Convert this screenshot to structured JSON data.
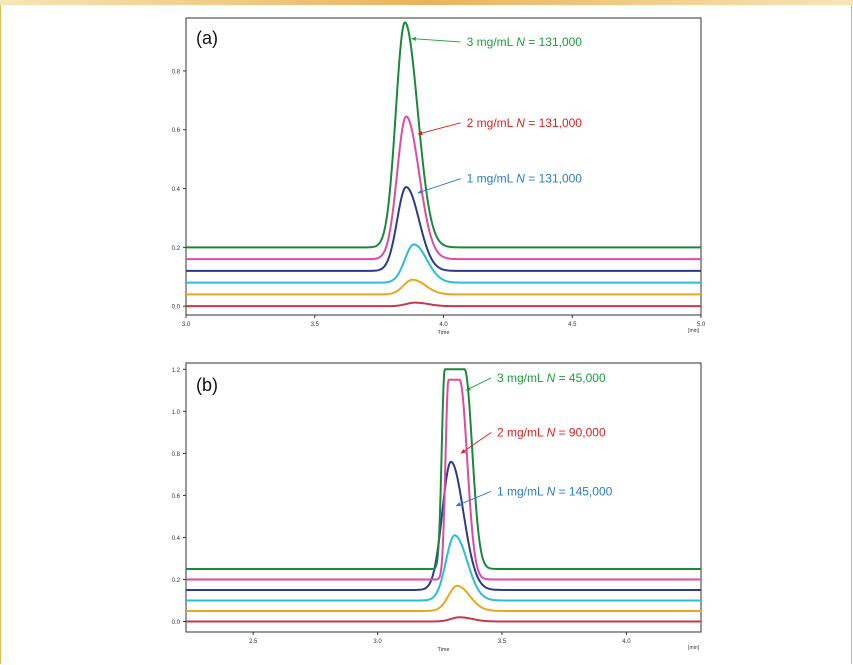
{
  "chart_data": [
    {
      "type": "line",
      "panel_label": "(a)",
      "xlabel": "Time",
      "x_unit": "[min]",
      "xlim": [
        3.0,
        5.0
      ],
      "ylim": [
        -0.03,
        0.98
      ],
      "x_ticks": [
        "3.0",
        "3.5",
        "4.0",
        "4.5",
        "5.0"
      ],
      "y_ticks": [
        "0.0",
        "0.2",
        "0.4",
        "0.6",
        "0.8"
      ],
      "series": [
        {
          "color": "#c43a4c",
          "baseline": 0.0,
          "peak_height": 0.012,
          "peak_x": 3.89,
          "apex_value": 0.012
        },
        {
          "color": "#e8a820",
          "baseline": 0.04,
          "peak_height": 0.05,
          "peak_x": 3.88,
          "apex_value": 0.09
        },
        {
          "color": "#2bbcd8",
          "baseline": 0.08,
          "peak_height": 0.13,
          "peak_x": 3.885,
          "apex_value": 0.21
        },
        {
          "color": "#2e3a8c",
          "baseline": 0.12,
          "peak_height": 0.285,
          "peak_x": 3.855,
          "apex_value": 0.405
        },
        {
          "color": "#e04ba0",
          "baseline": 0.16,
          "peak_height": 0.485,
          "peak_x": 3.855,
          "apex_value": 0.645
        },
        {
          "color": "#1a8a3a",
          "baseline": 0.2,
          "peak_height": 0.765,
          "peak_x": 3.85,
          "apex_value": 0.965
        }
      ],
      "annotations": [
        {
          "prefix": "3 mg/mL ",
          "n_symbol": "N",
          "suffix": " = 131,000",
          "color": "#1aa03c",
          "arrow_to": [
            3.875,
            0.91
          ],
          "text_at": [
            4.09,
            0.885
          ]
        },
        {
          "prefix": "2 mg/mL ",
          "n_symbol": "N",
          "suffix": " = 131,000",
          "color": "#e01e1e",
          "arrow_to": [
            3.9,
            0.585
          ],
          "text_at": [
            4.09,
            0.61
          ]
        },
        {
          "prefix": "1 mg/mL ",
          "n_symbol": "N",
          "suffix": " = 131,000",
          "color": "#2a7cc8",
          "arrow_to": [
            3.9,
            0.385
          ],
          "text_at": [
            4.09,
            0.42
          ]
        }
      ]
    },
    {
      "type": "line",
      "panel_label": "(b)",
      "xlabel": "Time",
      "x_unit": "[min]",
      "xlim": [
        2.23,
        4.3
      ],
      "ylim": [
        -0.05,
        1.23
      ],
      "x_ticks": [
        "2.5",
        "3.0",
        "3.5",
        "4.0"
      ],
      "y_ticks": [
        "0.0",
        "0.2",
        "0.4",
        "0.6",
        "0.8",
        "1.0",
        "1.2"
      ],
      "series": [
        {
          "color": "#c43a4c",
          "baseline": 0.0,
          "peak_height": 0.02,
          "peak_x": 3.33,
          "apex_value": 0.02
        },
        {
          "color": "#e8a820",
          "baseline": 0.05,
          "peak_height": 0.12,
          "peak_x": 3.32,
          "apex_value": 0.17
        },
        {
          "color": "#2bbcd8",
          "baseline": 0.1,
          "peak_height": 0.31,
          "peak_x": 3.31,
          "apex_value": 0.41
        },
        {
          "color": "#2e3a8c",
          "baseline": 0.15,
          "peak_height": 0.61,
          "peak_x": 3.295,
          "apex_value": 0.76
        },
        {
          "color": "#e04ba0",
          "baseline": 0.2,
          "peak_height": 0.95,
          "peak_x": 3.31,
          "apex_value": 1.15,
          "flat_top": [
            3.285,
            3.33
          ]
        },
        {
          "color": "#1a8a3a",
          "baseline": 0.25,
          "peak_height": 0.95,
          "peak_x": 3.31,
          "apex_value": 1.2,
          "flat_top": [
            3.27,
            3.35
          ]
        }
      ],
      "annotations": [
        {
          "prefix": "3 mg/mL ",
          "n_symbol": "N",
          "suffix": " = 45,000",
          "color": "#1aa03c",
          "arrow_to": [
            3.355,
            1.1
          ],
          "text_at": [
            3.48,
            1.14
          ]
        },
        {
          "prefix": "2 mg/mL ",
          "n_symbol": "N",
          "suffix": " = 90,000",
          "color": "#e01e1e",
          "arrow_to": [
            3.335,
            0.8
          ],
          "text_at": [
            3.48,
            0.88
          ]
        },
        {
          "prefix": "1 mg/mL ",
          "n_symbol": "N",
          "suffix": " = 145,000",
          "color": "#2a7cc8",
          "arrow_to": [
            3.315,
            0.55
          ],
          "text_at": [
            3.48,
            0.6
          ]
        }
      ]
    }
  ]
}
